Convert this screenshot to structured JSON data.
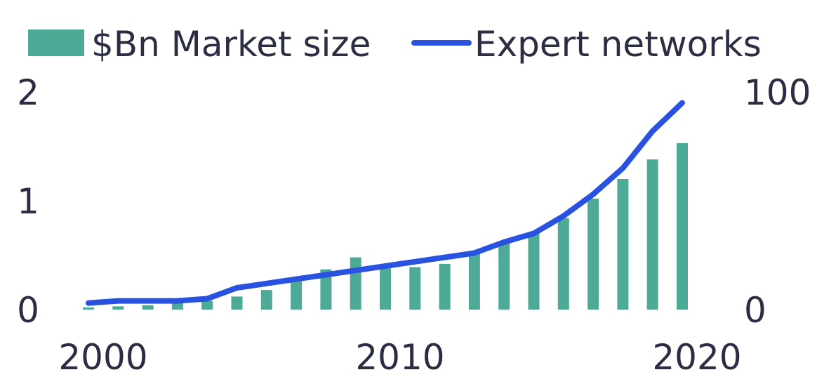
{
  "chart_data": {
    "type": "bar",
    "title": "",
    "xlabel": "",
    "ylabel": "",
    "x": [
      2000,
      2001,
      2002,
      2003,
      2004,
      2005,
      2006,
      2007,
      2008,
      2009,
      2010,
      2011,
      2012,
      2013,
      2014,
      2015,
      2016,
      2017,
      2018,
      2019,
      2020
    ],
    "x_tick_labels": [
      {
        "value": 2000,
        "label": "2000"
      },
      {
        "value": 2010,
        "label": "2010"
      },
      {
        "value": 2020,
        "label": "2020"
      }
    ],
    "ylim": [
      0,
      2
    ],
    "y_tick_labels": [
      {
        "value": 0,
        "label": "0"
      },
      {
        "value": 1,
        "label": "1"
      },
      {
        "value": 2,
        "label": "2"
      }
    ],
    "y2lim": [
      0,
      100
    ],
    "y2_tick_labels": [
      {
        "value": 0,
        "label": "0"
      },
      {
        "value": 100,
        "label": "100"
      }
    ],
    "grid": false,
    "legend_position": "top",
    "series": [
      {
        "name": "$Bn Market size",
        "type": "bar",
        "axis": "left",
        "color": "#4daa96",
        "values": [
          0.02,
          0.03,
          0.04,
          0.06,
          0.08,
          0.12,
          0.18,
          0.26,
          0.37,
          0.48,
          0.38,
          0.39,
          0.42,
          0.52,
          0.61,
          0.7,
          0.84,
          1.02,
          1.2,
          1.38,
          1.53
        ]
      },
      {
        "name": "Expert networks",
        "type": "line",
        "axis": "right",
        "color": "#2a52e0",
        "values": [
          3,
          4,
          4,
          4,
          5,
          10,
          12,
          14,
          16,
          18,
          20,
          22,
          24,
          26,
          31,
          35,
          43,
          53,
          65,
          82,
          95
        ]
      }
    ]
  }
}
